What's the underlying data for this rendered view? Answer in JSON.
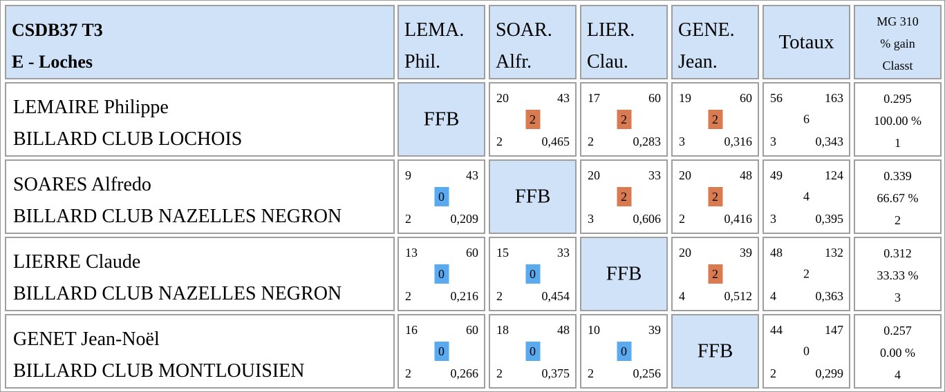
{
  "header": {
    "title_line1": "CSDB37 T3",
    "title_line2": "E - Loches",
    "columns": [
      {
        "line1": "LEMA.",
        "line2": "Phil."
      },
      {
        "line1": "SOAR.",
        "line2": "Alfr."
      },
      {
        "line1": "LIER.",
        "line2": "Clau."
      },
      {
        "line1": "GENE.",
        "line2": "Jean."
      }
    ],
    "totaux": "Totaux",
    "mg_line1": "MG 310",
    "mg_line2": "% gain",
    "mg_line3": "Classt"
  },
  "ffb_label": "FFB",
  "colors": {
    "header_bg": "#cfe2f8",
    "win_badge": "#d97a50",
    "loss_badge": "#5aaaf0",
    "border": "#9e9e9e"
  },
  "rows": [
    {
      "name": "LEMAIRE Philippe",
      "club": "BILLARD CLUB LOCHOIS",
      "matches": [
        null,
        {
          "tl": "20",
          "tr": "43",
          "pts": "2",
          "bl": "2",
          "br": "0,465"
        },
        {
          "tl": "17",
          "tr": "60",
          "pts": "2",
          "bl": "2",
          "br": "0,283"
        },
        {
          "tl": "19",
          "tr": "60",
          "pts": "2",
          "bl": "3",
          "br": "0,316"
        }
      ],
      "totals": {
        "tl": "56",
        "tr": "163",
        "mid": "6",
        "bl": "3",
        "br": "0,343"
      },
      "mg": {
        "avg": "0.295",
        "pct": "100.00 %",
        "rank": "1"
      }
    },
    {
      "name": "SOARES Alfredo",
      "club": "BILLARD CLUB NAZELLES NEGRON",
      "matches": [
        {
          "tl": "9",
          "tr": "43",
          "pts": "0",
          "bl": "2",
          "br": "0,209"
        },
        null,
        {
          "tl": "20",
          "tr": "33",
          "pts": "2",
          "bl": "3",
          "br": "0,606"
        },
        {
          "tl": "20",
          "tr": "48",
          "pts": "2",
          "bl": "2",
          "br": "0,416"
        }
      ],
      "totals": {
        "tl": "49",
        "tr": "124",
        "mid": "4",
        "bl": "3",
        "br": "0,395"
      },
      "mg": {
        "avg": "0.339",
        "pct": "66.67 %",
        "rank": "2"
      }
    },
    {
      "name": "LIERRE Claude",
      "club": "BILLARD CLUB NAZELLES NEGRON",
      "matches": [
        {
          "tl": "13",
          "tr": "60",
          "pts": "0",
          "bl": "2",
          "br": "0,216"
        },
        {
          "tl": "15",
          "tr": "33",
          "pts": "0",
          "bl": "2",
          "br": "0,454"
        },
        null,
        {
          "tl": "20",
          "tr": "39",
          "pts": "2",
          "bl": "4",
          "br": "0,512"
        }
      ],
      "totals": {
        "tl": "48",
        "tr": "132",
        "mid": "2",
        "bl": "4",
        "br": "0,363"
      },
      "mg": {
        "avg": "0.312",
        "pct": "33.33 %",
        "rank": "3"
      }
    },
    {
      "name": "GENET Jean-Noël",
      "club": "BILLARD CLUB MONTLOUISIEN",
      "matches": [
        {
          "tl": "16",
          "tr": "60",
          "pts": "0",
          "bl": "2",
          "br": "0,266"
        },
        {
          "tl": "18",
          "tr": "48",
          "pts": "0",
          "bl": "2",
          "br": "0,375"
        },
        {
          "tl": "10",
          "tr": "39",
          "pts": "0",
          "bl": "2",
          "br": "0,256"
        },
        null
      ],
      "totals": {
        "tl": "44",
        "tr": "147",
        "mid": "0",
        "bl": "2",
        "br": "0,299"
      },
      "mg": {
        "avg": "0.257",
        "pct": "0.00 %",
        "rank": "4"
      }
    }
  ]
}
